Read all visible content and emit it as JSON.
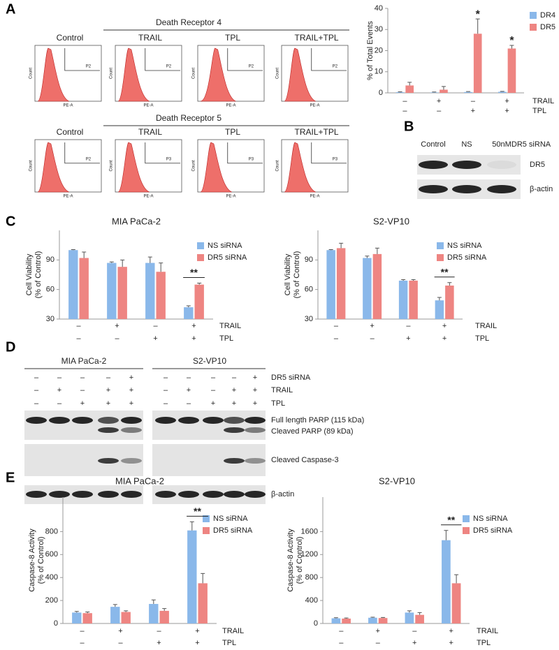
{
  "panel_labels": [
    "A",
    "B",
    "C",
    "D",
    "E"
  ],
  "flow": {
    "rows": [
      {
        "title": "Death Receptor 4",
        "gates": [
          "P2",
          "P2",
          "P2",
          "P2"
        ]
      },
      {
        "title": "Death Receptor 5",
        "gates": [
          "P2",
          "P3",
          "P3",
          "P3"
        ]
      }
    ],
    "conditions": [
      "Control",
      "TRAIL",
      "TPL",
      "TRAIL+TPL"
    ],
    "x_label": "PE-A",
    "y_label": "Count"
  },
  "blot_b": {
    "lanes": [
      "Control",
      "NS",
      "50nM"
    ],
    "treatment": "DR5 siRNA",
    "rows": [
      "DR5",
      "β-actin"
    ]
  },
  "blot_d": {
    "cell_lines": [
      "MIA PaCa-2",
      "S2-VP10"
    ],
    "conditions": [
      {
        "name": "DR5 siRNA",
        "signs": [
          "–",
          "–",
          "–",
          "–",
          "+"
        ]
      },
      {
        "name": "TRAIL",
        "signs": [
          "–",
          "+",
          "–",
          "+",
          "+"
        ]
      },
      {
        "name": "TPL",
        "signs": [
          "–",
          "–",
          "+",
          "+",
          "+"
        ]
      }
    ],
    "rows": [
      "Full length PARP (115 kDa)",
      "Cleaved PARP (89 kDa)",
      "Cleaved Caspase-3",
      "β-actin"
    ]
  },
  "chart_data": [
    {
      "type": "bar",
      "y_label": [
        "% of Total Events"
      ],
      "ylim": [
        0,
        40
      ],
      "yticks": [
        0,
        10,
        20,
        30,
        40
      ],
      "series": [
        {
          "name": "DR4",
          "color": "#8ab8ea",
          "values": [
            0.3,
            0.2,
            0.4,
            0.5
          ],
          "errors": [
            0.2,
            0.2,
            0.2,
            0.2
          ]
        },
        {
          "name": "DR5",
          "color": "#ee8582",
          "values": [
            3.5,
            1.5,
            28,
            21
          ],
          "errors": [
            1.5,
            1.5,
            7,
            1.5
          ]
        }
      ],
      "annotations": [
        null,
        null,
        "*",
        "*"
      ],
      "conditions": [
        {
          "name": "TRAIL",
          "signs": [
            "–",
            "+",
            "–",
            "+"
          ]
        },
        {
          "name": "TPL",
          "signs": [
            "–",
            "–",
            "+",
            "+"
          ]
        }
      ]
    },
    {
      "type": "bar",
      "title": "MIA PaCa-2",
      "y_label": [
        "Cell Viability",
        "(% of Control)"
      ],
      "ylim": [
        30,
        120
      ],
      "yticks": [
        30,
        60,
        90
      ],
      "series": [
        {
          "name": "NS siRNA",
          "color": "#8ab8ea",
          "values": [
            100,
            87,
            87,
            42
          ],
          "errors": [
            0.5,
            1,
            6,
            1.5
          ]
        },
        {
          "name": "DR5 siRNA",
          "color": "#ee8582",
          "values": [
            92,
            83,
            78,
            65
          ],
          "errors": [
            6,
            7,
            9,
            1.5
          ]
        }
      ],
      "annotations": [
        null,
        null,
        null,
        "**"
      ],
      "conditions": [
        {
          "name": "TRAIL",
          "signs": [
            "–",
            "+",
            "–",
            "+"
          ]
        },
        {
          "name": "TPL",
          "signs": [
            "–",
            "–",
            "+",
            "+"
          ]
        }
      ]
    },
    {
      "type": "bar",
      "title": "S2-VP10",
      "y_label": [
        "Cell Viability",
        "(% of Control)"
      ],
      "ylim": [
        30,
        120
      ],
      "yticks": [
        30,
        60,
        90
      ],
      "series": [
        {
          "name": "NS siRNA",
          "color": "#8ab8ea",
          "values": [
            100,
            92,
            69,
            49
          ],
          "errors": [
            0.5,
            2,
            1,
            3
          ]
        },
        {
          "name": "DR5 siRNA",
          "color": "#ee8582",
          "values": [
            102,
            96,
            69,
            64
          ],
          "errors": [
            5,
            6,
            1,
            3
          ]
        }
      ],
      "annotations": [
        null,
        null,
        null,
        "**"
      ],
      "conditions": [
        {
          "name": "TRAIL",
          "signs": [
            "–",
            "+",
            "–",
            "+"
          ]
        },
        {
          "name": "TPL",
          "signs": [
            "–",
            "–",
            "+",
            "+"
          ]
        }
      ]
    },
    {
      "type": "bar",
      "title": "MIA PaCa-2",
      "y_label": [
        "Caspase-8 Activity",
        "(% of Control)"
      ],
      "ylim": [
        0,
        1100
      ],
      "yticks": [
        0,
        200,
        400,
        600,
        800
      ],
      "series": [
        {
          "name": "NS siRNA",
          "color": "#8ab8ea",
          "values": [
            95,
            145,
            170,
            810
          ],
          "errors": [
            10,
            20,
            35,
            75
          ]
        },
        {
          "name": "DR5 siRNA",
          "color": "#ee8582",
          "values": [
            90,
            100,
            110,
            350
          ],
          "errors": [
            10,
            10,
            20,
            85
          ]
        }
      ],
      "annotations": [
        null,
        null,
        null,
        "**"
      ],
      "conditions": [
        {
          "name": "TRAIL",
          "signs": [
            "–",
            "+",
            "–",
            "+"
          ]
        },
        {
          "name": "TPL",
          "signs": [
            "–",
            "–",
            "+",
            "+"
          ]
        }
      ]
    },
    {
      "type": "bar",
      "title": "S2-VP10",
      "y_label": [
        "Caspase-8 Activity",
        "(% of Control)"
      ],
      "ylim": [
        0,
        2200
      ],
      "yticks": [
        0,
        400,
        800,
        1200,
        1600
      ],
      "series": [
        {
          "name": "NS siRNA",
          "color": "#8ab8ea",
          "values": [
            90,
            100,
            190,
            1450
          ],
          "errors": [
            10,
            10,
            30,
            170
          ]
        },
        {
          "name": "DR5 siRNA",
          "color": "#ee8582",
          "values": [
            85,
            95,
            150,
            700
          ],
          "errors": [
            10,
            10,
            40,
            150
          ]
        }
      ],
      "annotations": [
        null,
        null,
        null,
        "**"
      ],
      "conditions": [
        {
          "name": "TRAIL",
          "signs": [
            "–",
            "+",
            "–",
            "+"
          ]
        },
        {
          "name": "TPL",
          "signs": [
            "–",
            "–",
            "+",
            "+"
          ]
        }
      ]
    }
  ]
}
